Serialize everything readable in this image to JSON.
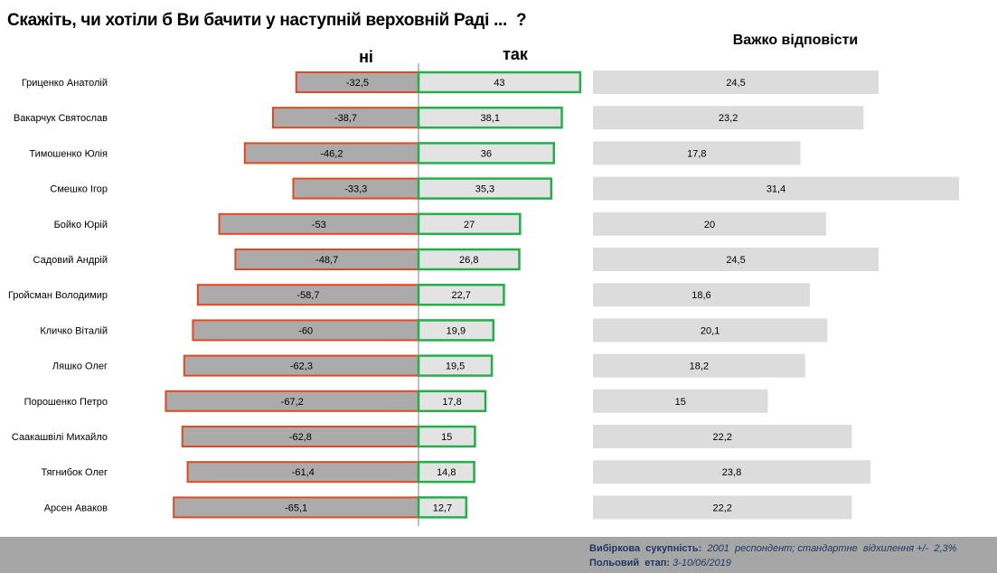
{
  "chart_data": {
    "type": "bar",
    "title": "Скажіть, чи хотіли б Ви бачити у наступній верховній Раді ...  ?",
    "series": [
      {
        "name": "ні",
        "values": [
          -32.5,
          -38.7,
          -46.2,
          -33.3,
          -53,
          -48.7,
          -58.7,
          -60,
          -62.3,
          -67.2,
          -62.8,
          -61.4,
          -65.1
        ],
        "labels": [
          "-32,5",
          "-38,7",
          "-46,2",
          "-33,3",
          "-53",
          "-48,7",
          "-58,7",
          "-60",
          "-62,3",
          "-67,2",
          "-62,8",
          "-61,4",
          "-65,1"
        ],
        "color": "#ababab",
        "border": "#e8461e"
      },
      {
        "name": "так",
        "values": [
          43,
          38.1,
          36,
          35.3,
          27,
          26.8,
          22.7,
          19.9,
          19.5,
          17.8,
          15,
          14.8,
          12.7
        ],
        "labels": [
          "43",
          "38,1",
          "36",
          "35,3",
          "27",
          "26,8",
          "22,7",
          "19,9",
          "19,5",
          "17,8",
          "15",
          "14,8",
          "12,7"
        ],
        "color": "#e3e3e3",
        "border": "#22b04b"
      },
      {
        "name": "Важко відповісти",
        "values": [
          24.5,
          23.2,
          17.8,
          31.4,
          20,
          24.5,
          18.6,
          20.1,
          18.2,
          15,
          22.2,
          23.8,
          22.2
        ],
        "labels": [
          "24,5",
          "23,2",
          "17,8",
          "31,4",
          "20",
          "24,5",
          "18,6",
          "20,1",
          "18,2",
          "15",
          "22,2",
          "23,8",
          "22,2"
        ],
        "color": "#dcdcdc"
      }
    ],
    "categories": [
      "Гриценко Анатолій",
      "Вакарчук Святослав",
      "Тимошенко Юлія",
      "Смешко Ігор",
      "Бойко Юрій",
      "Садовий Андрій",
      "Гройсман Володимир",
      "Кличко Віталій",
      "Ляшко Олег",
      "Порошенко Петро",
      "Саакашвілі Михайло",
      "Тягнибок Олег",
      "Арсен Аваков"
    ],
    "grid": false
  },
  "footer": {
    "sample_label": "Вибіркова  сукупність:",
    "sample_value": "  2001  респондент; стандартне  відхилення +/-  2,3%",
    "period_label": "Польовий  етап:",
    "period_value": " 3-10/06/2019"
  }
}
